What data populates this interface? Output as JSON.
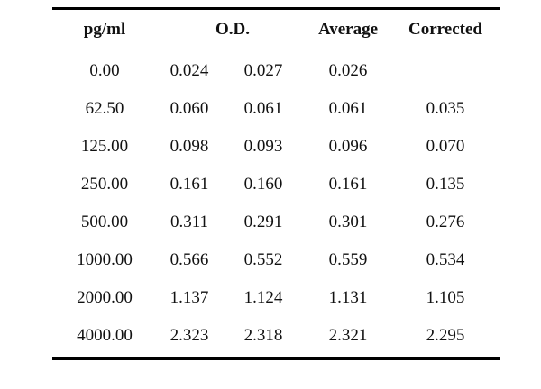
{
  "table": {
    "headers": {
      "concentration": "pg/ml",
      "od": "O.D.",
      "average": "Average",
      "corrected": "Corrected"
    },
    "rows": [
      {
        "conc": "0.00",
        "od1": "0.024",
        "od2": "0.027",
        "avg": "0.026",
        "corrected": ""
      },
      {
        "conc": "62.50",
        "od1": "0.060",
        "od2": "0.061",
        "avg": "0.061",
        "corrected": "0.035"
      },
      {
        "conc": "125.00",
        "od1": "0.098",
        "od2": "0.093",
        "avg": "0.096",
        "corrected": "0.070"
      },
      {
        "conc": "250.00",
        "od1": "0.161",
        "od2": "0.160",
        "avg": "0.161",
        "corrected": "0.135"
      },
      {
        "conc": "500.00",
        "od1": "0.311",
        "od2": "0.291",
        "avg": "0.301",
        "corrected": "0.276"
      },
      {
        "conc": "1000.00",
        "od1": "0.566",
        "od2": "0.552",
        "avg": "0.559",
        "corrected": "0.534"
      },
      {
        "conc": "2000.00",
        "od1": "1.137",
        "od2": "1.124",
        "avg": "1.131",
        "corrected": "1.105"
      },
      {
        "conc": "4000.00",
        "od1": "2.323",
        "od2": "2.318",
        "avg": "2.321",
        "corrected": "2.295"
      }
    ]
  }
}
